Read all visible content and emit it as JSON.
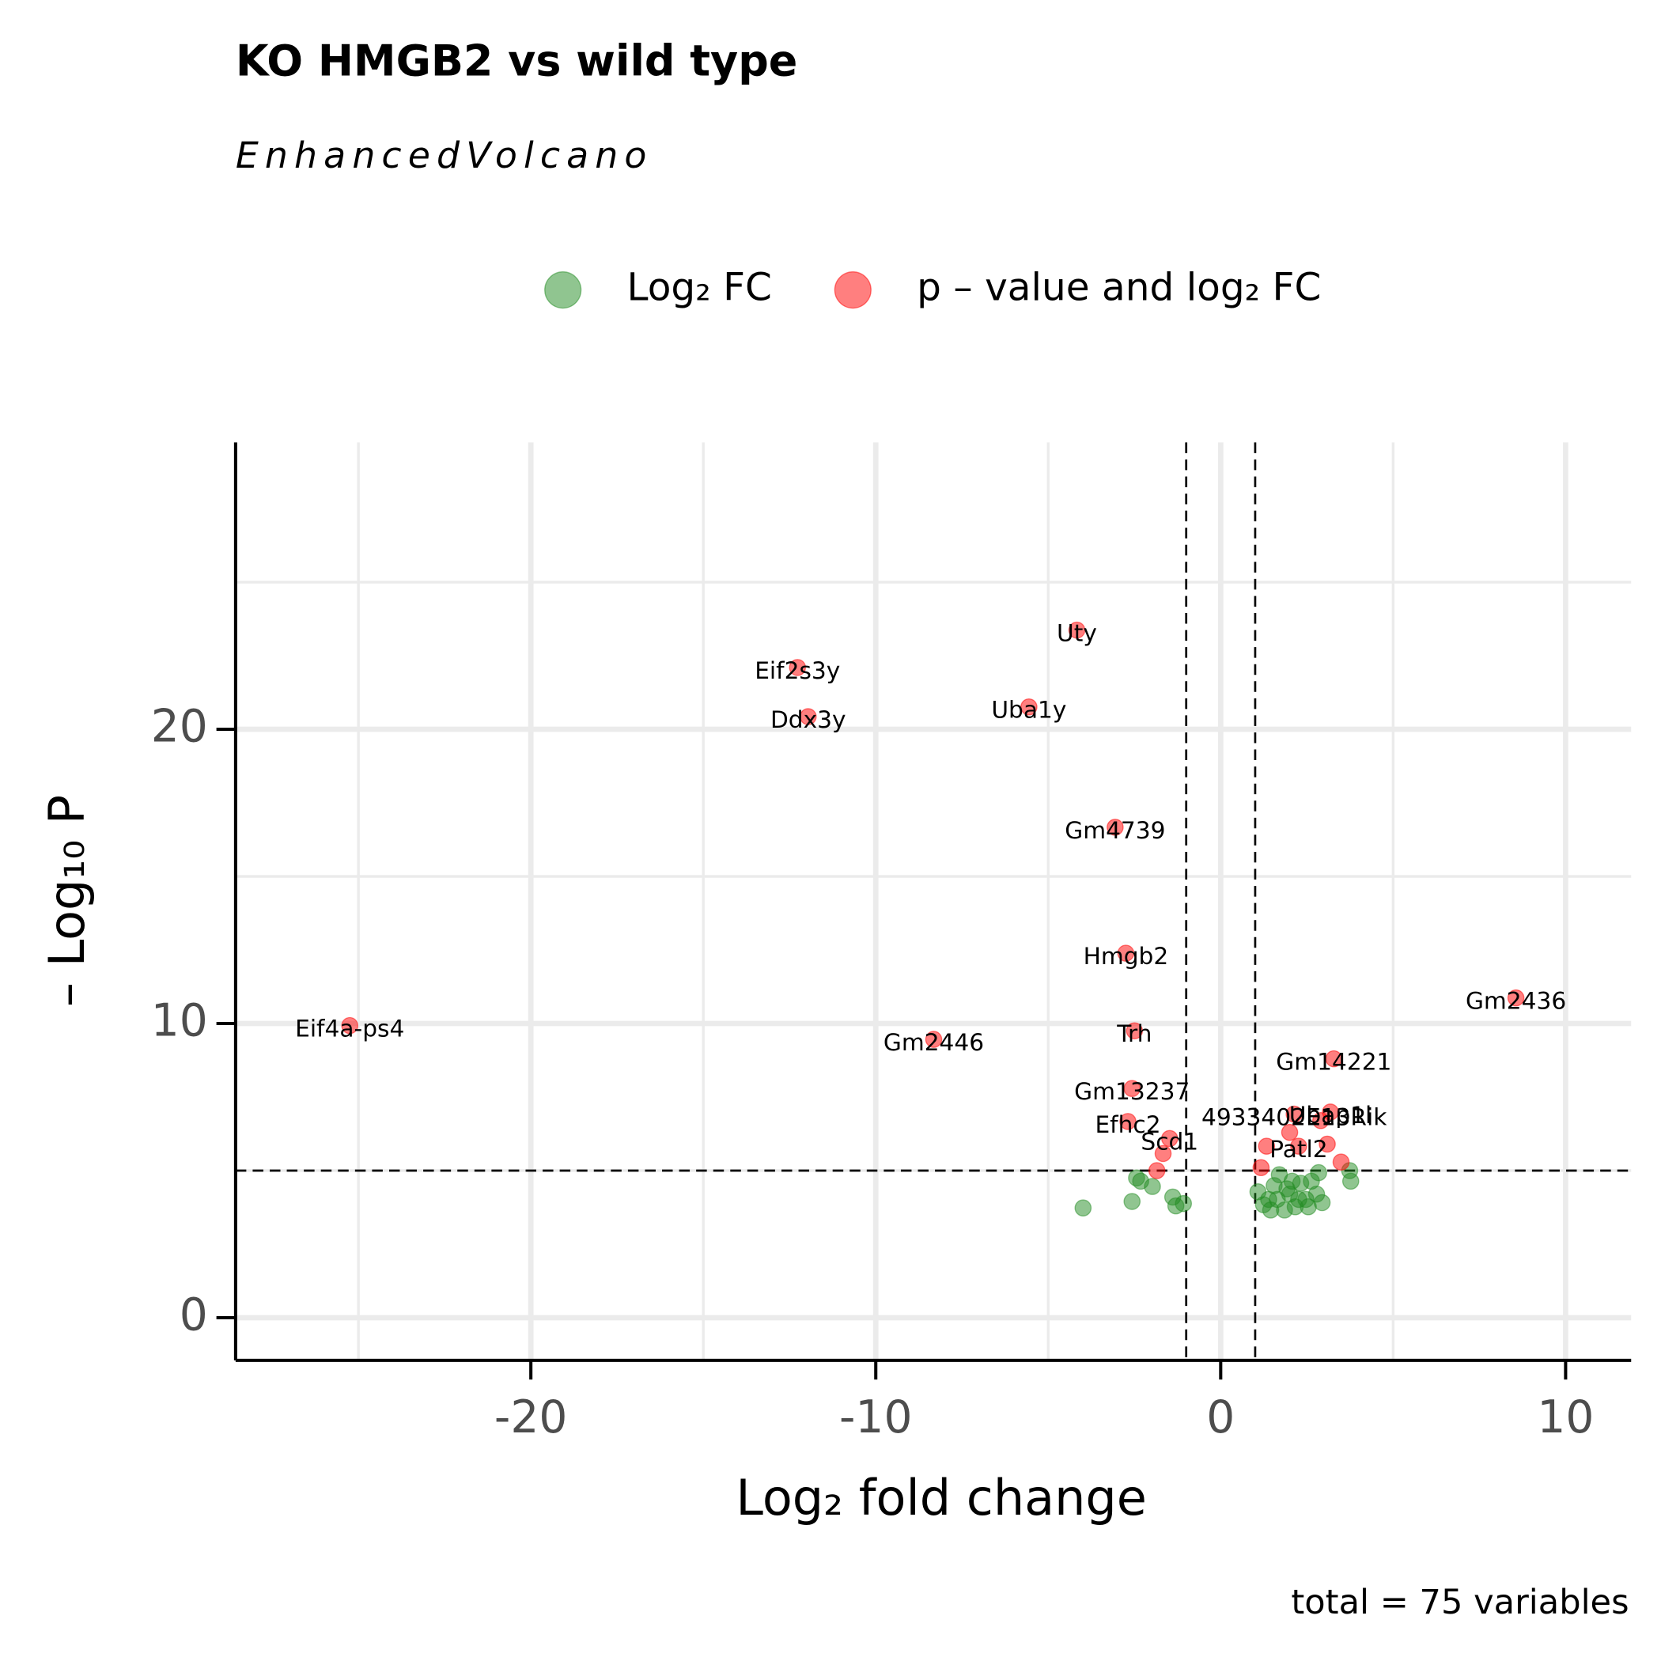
{
  "chart_data": {
    "type": "scatter",
    "title": "KO HMGB2 vs wild type",
    "subtitle": "EnhancedVolcano",
    "caption": "total = 75 variables",
    "x_label": "Log₂ fold change",
    "y_label": "– Log₁₀ P",
    "xlim": [
      -28.56,
      11.9
    ],
    "ylim": [
      -1.45,
      29.75
    ],
    "xticks": [
      -20,
      -10,
      0,
      10
    ],
    "yticks": [
      0,
      10,
      20
    ],
    "xminor": [
      -25,
      -15,
      -5,
      5
    ],
    "yminor": [
      5,
      15,
      25
    ],
    "grid": true,
    "legend": "top",
    "alpha": 0.5,
    "thresholds": {
      "x": [
        -1,
        1
      ],
      "y": 5
    },
    "series": [
      {
        "name": "Log₂ FC",
        "color": "#228B22",
        "x": [
          -3.99,
          -2.57,
          -2.44,
          -2.32,
          -1.98,
          -1.39,
          -1.3,
          -1.08,
          1.08,
          1.24,
          1.39,
          1.55,
          1.7,
          1.85,
          2.0,
          2.16,
          2.32,
          2.47,
          2.63,
          2.78,
          2.94,
          2.84,
          3.74,
          3.77,
          1.64,
          1.92,
          1.45,
          2.07,
          2.54,
          2.26
        ],
        "values": [
          3.73,
          3.95,
          4.75,
          4.64,
          4.46,
          4.1,
          3.8,
          3.88,
          4.28,
          3.84,
          4.02,
          4.49,
          4.86,
          3.66,
          4.2,
          3.77,
          4.57,
          4.02,
          4.64,
          4.2,
          3.91,
          4.93,
          5.0,
          4.64,
          4.02,
          4.38,
          3.66,
          4.64,
          3.77,
          4.02
        ]
      },
      {
        "name": "p – value and log₂ FC",
        "color": "#FF0000",
        "x": [
          -4.17,
          -12.27,
          -11.96,
          -5.56,
          -3.06,
          -2.75,
          -25.25,
          -8.32,
          -2.5,
          8.56,
          3.28,
          -2.57,
          -2.69,
          3.18,
          2.13,
          -1.48,
          2.26,
          -1.67,
          -1.85,
          1.33,
          1.17,
          3.09,
          3.49,
          2.0,
          2.9
        ],
        "values": [
          23.37,
          22.1,
          20.43,
          20.76,
          16.67,
          12.39,
          9.93,
          9.46,
          9.75,
          10.87,
          8.8,
          7.79,
          6.67,
          6.99,
          6.92,
          6.09,
          5.83,
          5.58,
          5.0,
          5.83,
          5.1,
          5.9,
          5.29,
          6.3,
          6.7
        ],
        "labels": [
          "Uty",
          "Eif2s3y",
          "Ddx3y",
          "Uba1y",
          "Gm4739",
          "Hmgb2",
          "Eif4a-ps4",
          "Gm2446",
          "Trh",
          "Gm2436",
          "Gm14221",
          "Gm13237",
          "Efhc2",
          "Ubap1l",
          "4933402E13Rik",
          "Scd1",
          "Patl2",
          null,
          null,
          null,
          null,
          null,
          null,
          null,
          null
        ]
      }
    ]
  }
}
